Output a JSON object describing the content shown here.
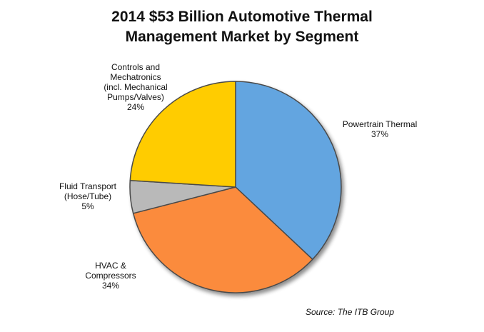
{
  "chart_data": {
    "type": "pie",
    "title_lines": [
      "2014 $53 Billion Automotive Thermal",
      "Management Market by Segment"
    ],
    "slices": [
      {
        "label_lines": [
          "Powertrain Thermal"
        ],
        "value_text": "37%",
        "value": 37,
        "color": "#64A5E0"
      },
      {
        "label_lines": [
          "HVAC &",
          "Compressors"
        ],
        "value_text": "34%",
        "value": 34,
        "color": "#FB8B3C"
      },
      {
        "label_lines": [
          "Fluid Transport",
          "(Hose/Tube)"
        ],
        "value_text": "5%",
        "value": 5,
        "color": "#B9B9B9"
      },
      {
        "label_lines": [
          "Controls and",
          "Mechatronics",
          "(incl. Mechanical",
          "Pumps/Valves)"
        ],
        "value_text": "24%",
        "value": 24,
        "color": "#FFCC00"
      }
    ],
    "start_angle": "12 o'clock",
    "direction": "clockwise",
    "legend": "none"
  },
  "source": "Source:  The ITB Group"
}
